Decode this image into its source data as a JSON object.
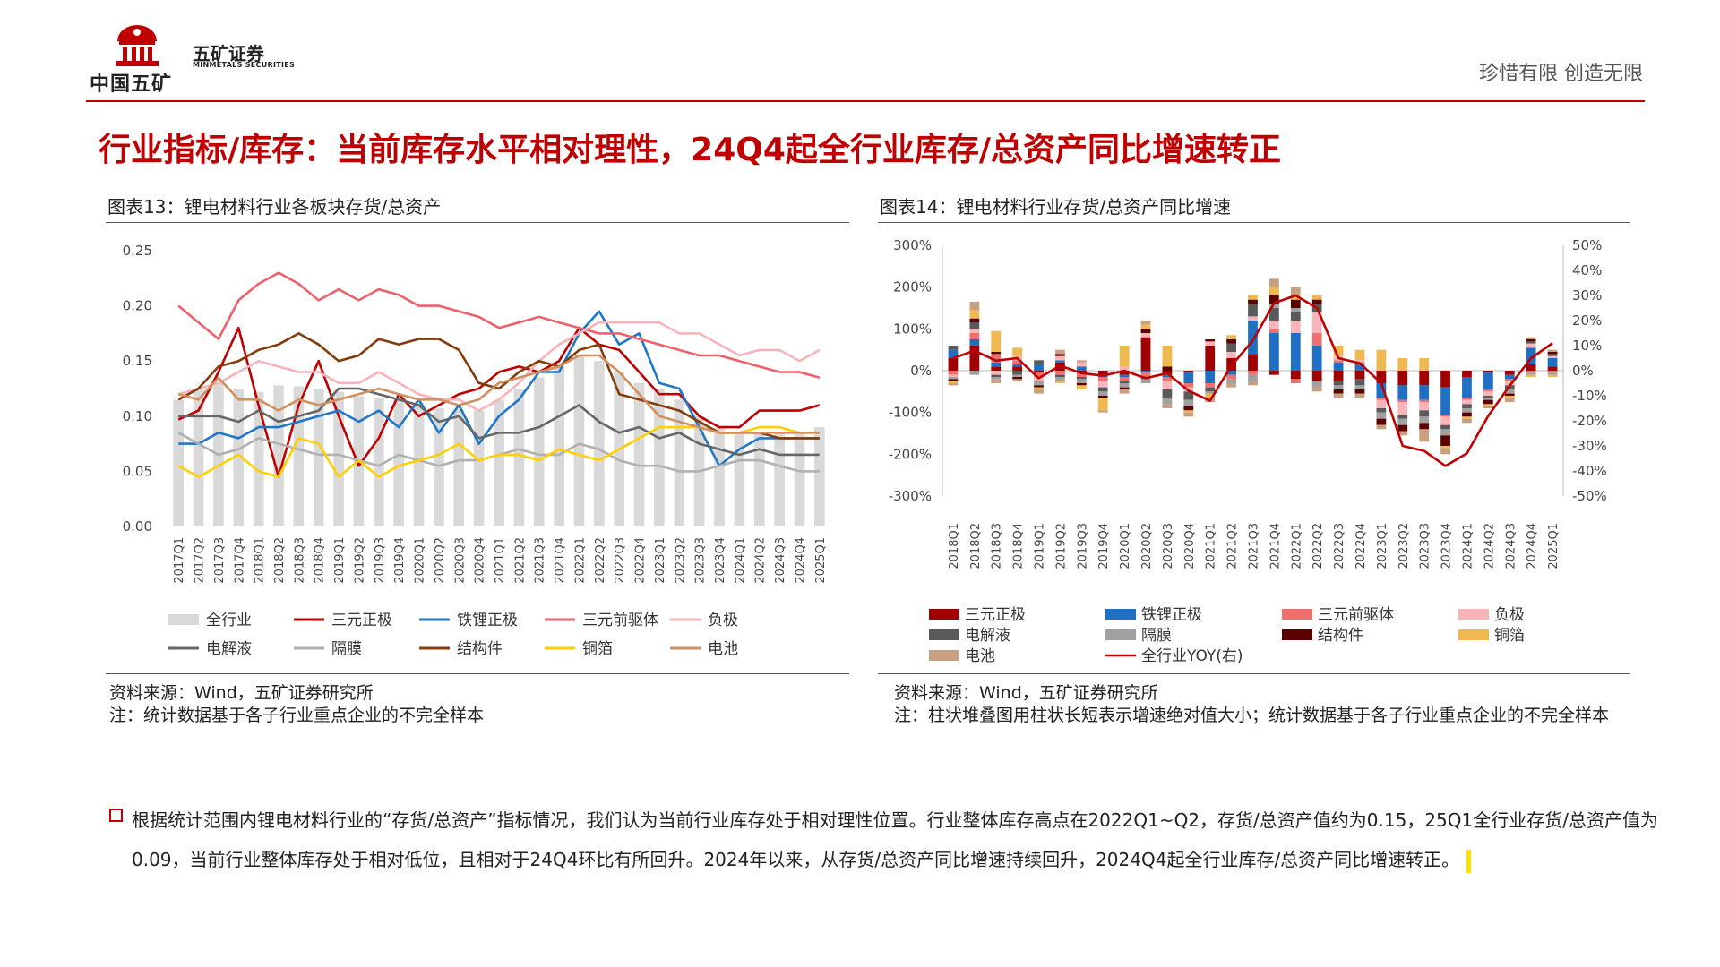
{
  "header": {
    "brand_cn": "中国五矿",
    "company_name": "五矿证券",
    "company_en": "MINMETALS SECURITIES",
    "slogan": "珍惜有限  创造无限"
  },
  "page_title": "行业指标/库存：当前库存水平相对理性，24Q4起全行业库存/总资产同比增速转正",
  "chart13": {
    "caption": "图表13：锂电材料行业各板块存货/总资产",
    "source": "资料来源：Wind，五矿证券研究所",
    "note": "注：统计数据基于各子行业重点企业的不完全样本"
  },
  "chart14": {
    "caption": "图表14：锂电材料行业存货/总资产同比增速",
    "source": "资料来源：Wind，五矿证券研究所",
    "note": "注：柱状堆叠图用柱状长短表示增速绝对值大小；统计数据基于各子行业重点企业的不完全样本"
  },
  "conclusion": "根据统计范围内锂电材料行业的“存货/总资产”指标情况，我们认为当前行业库存处于相对理性位置。行业整体库存高点在2022Q1~Q2，存货/总资产值约为0.15，25Q1全行业存货/总资产值为0.09，当前行业整体库存处于相对低位，且相对于24Q4环比有所回升。2024年以来，从存货/总资产同比增速持续回升，2024Q4起全行业库存/总资产同比增速转正。",
  "chart_data": [
    {
      "type": "bar",
      "ylim": [
        0,
        0.25
      ],
      "yticks": [
        "0.25",
        "0.20",
        "0.15",
        "0.10",
        "0.05",
        "0.00"
      ],
      "legend_position": "bottom",
      "categories": [
        "2017Q1",
        "2017Q2",
        "2017Q3",
        "2017Q4",
        "2018Q1",
        "2018Q2",
        "2018Q3",
        "2018Q4",
        "2019Q1",
        "2019Q2",
        "2019Q3",
        "2019Q4",
        "2020Q1",
        "2020Q2",
        "2020Q3",
        "2020Q4",
        "2021Q1",
        "2021Q2",
        "2021Q3",
        "2021Q4",
        "2022Q1",
        "2022Q2",
        "2022Q3",
        "2022Q4",
        "2023Q1",
        "2023Q2",
        "2023Q3",
        "2023Q4",
        "2024Q1",
        "2024Q2",
        "2024Q3",
        "2024Q4",
        "2025Q1"
      ],
      "bar_series": {
        "name": "全行业",
        "color": "#d9d9d9",
        "values": [
          0.115,
          0.125,
          0.13,
          0.125,
          0.122,
          0.128,
          0.127,
          0.125,
          0.122,
          0.118,
          0.117,
          0.116,
          0.112,
          0.107,
          0.106,
          0.105,
          0.115,
          0.125,
          0.135,
          0.145,
          0.155,
          0.15,
          0.14,
          0.13,
          0.125,
          0.115,
          0.1,
          0.09,
          0.085,
          0.085,
          0.085,
          0.085,
          0.09
        ]
      },
      "series": [
        {
          "name": "三元正极",
          "color": "#c00000",
          "width": 2.6,
          "values": [
            0.097,
            0.105,
            0.14,
            0.18,
            0.11,
            0.045,
            0.11,
            0.15,
            0.1,
            0.055,
            0.08,
            0.12,
            0.1,
            0.11,
            0.12,
            0.125,
            0.14,
            0.145,
            0.14,
            0.15,
            0.18,
            0.165,
            0.16,
            0.14,
            0.12,
            0.12,
            0.1,
            0.09,
            0.09,
            0.105,
            0.105,
            0.105,
            0.11
          ]
        },
        {
          "name": "铁锂正极",
          "color": "#1f77c8",
          "width": 2.6,
          "values": [
            0.075,
            0.075,
            0.085,
            0.08,
            0.09,
            0.09,
            0.095,
            0.1,
            0.105,
            0.095,
            0.105,
            0.09,
            0.115,
            0.085,
            0.11,
            0.075,
            0.1,
            0.115,
            0.14,
            0.14,
            0.175,
            0.195,
            0.165,
            0.175,
            0.13,
            0.125,
            0.09,
            0.055,
            0.07,
            0.08,
            0.08,
            0.08,
            0.08
          ]
        },
        {
          "name": "三元前驱体",
          "color": "#f0606a",
          "width": 2.6,
          "values": [
            0.2,
            0.185,
            0.17,
            0.205,
            0.22,
            0.23,
            0.22,
            0.205,
            0.215,
            0.205,
            0.215,
            0.21,
            0.2,
            0.2,
            0.195,
            0.19,
            0.18,
            0.185,
            0.19,
            0.185,
            0.18,
            0.175,
            0.175,
            0.17,
            0.165,
            0.16,
            0.155,
            0.155,
            0.15,
            0.145,
            0.14,
            0.14,
            0.135
          ]
        },
        {
          "name": "负极",
          "color": "#f8b4b8",
          "width": 2.6,
          "values": [
            0.12,
            0.125,
            0.13,
            0.14,
            0.15,
            0.145,
            0.14,
            0.14,
            0.13,
            0.13,
            0.14,
            0.13,
            0.12,
            0.115,
            0.115,
            0.105,
            0.115,
            0.13,
            0.15,
            0.165,
            0.175,
            0.185,
            0.185,
            0.185,
            0.185,
            0.175,
            0.175,
            0.165,
            0.155,
            0.16,
            0.16,
            0.15,
            0.16
          ]
        },
        {
          "name": "电解液",
          "color": "#666666",
          "width": 2.6,
          "values": [
            0.1,
            0.1,
            0.1,
            0.095,
            0.105,
            0.095,
            0.1,
            0.105,
            0.125,
            0.125,
            0.12,
            0.115,
            0.11,
            0.095,
            0.1,
            0.08,
            0.085,
            0.085,
            0.09,
            0.1,
            0.11,
            0.095,
            0.085,
            0.09,
            0.08,
            0.085,
            0.075,
            0.07,
            0.065,
            0.07,
            0.065,
            0.065,
            0.065
          ]
        },
        {
          "name": "隔膜",
          "color": "#b0b0b0",
          "width": 2.6,
          "values": [
            0.085,
            0.075,
            0.065,
            0.07,
            0.08,
            0.075,
            0.07,
            0.065,
            0.065,
            0.06,
            0.055,
            0.065,
            0.06,
            0.055,
            0.06,
            0.06,
            0.065,
            0.07,
            0.065,
            0.065,
            0.075,
            0.07,
            0.06,
            0.055,
            0.055,
            0.05,
            0.05,
            0.055,
            0.06,
            0.06,
            0.055,
            0.05,
            0.05
          ]
        },
        {
          "name": "结构件",
          "color": "#843c0c",
          "width": 2.6,
          "values": [
            0.115,
            0.125,
            0.145,
            0.15,
            0.16,
            0.165,
            0.175,
            0.165,
            0.15,
            0.155,
            0.17,
            0.165,
            0.17,
            0.17,
            0.16,
            0.13,
            0.125,
            0.14,
            0.15,
            0.145,
            0.16,
            0.165,
            0.12,
            0.115,
            0.11,
            0.105,
            0.095,
            0.085,
            0.085,
            0.085,
            0.08,
            0.08,
            0.08
          ]
        },
        {
          "name": "铜箔",
          "color": "#ffd000",
          "width": 2.6,
          "values": [
            0.055,
            0.045,
            0.055,
            0.065,
            0.05,
            0.045,
            0.08,
            0.075,
            0.045,
            0.06,
            0.045,
            0.055,
            0.06,
            0.065,
            0.075,
            0.06,
            0.065,
            0.065,
            0.06,
            0.07,
            0.065,
            0.06,
            0.07,
            0.08,
            0.09,
            0.09,
            0.09,
            0.085,
            0.085,
            0.09,
            0.09,
            0.085,
            0.085
          ]
        },
        {
          "name": "电池",
          "color": "#d09060",
          "width": 2.6,
          "values": [
            0.12,
            0.115,
            0.135,
            0.115,
            0.115,
            0.105,
            0.115,
            0.11,
            0.115,
            0.12,
            0.125,
            0.12,
            0.115,
            0.115,
            0.11,
            0.115,
            0.13,
            0.135,
            0.14,
            0.145,
            0.155,
            0.155,
            0.14,
            0.12,
            0.1,
            0.095,
            0.09,
            0.085,
            0.085,
            0.085,
            0.085,
            0.085,
            0.085
          ]
        }
      ]
    },
    {
      "type": "bar",
      "stacked": true,
      "ylim_left": [
        -300,
        300
      ],
      "yticks_left": [
        "300%",
        "200%",
        "100%",
        "0%",
        "-100%",
        "-200%",
        "-300%"
      ],
      "ylim_right": [
        -50,
        50
      ],
      "yticks_right": [
        "50%",
        "40%",
        "30%",
        "20%",
        "10%",
        "0%",
        "-10%",
        "-20%",
        "-30%",
        "-40%",
        "-50%"
      ],
      "legend_position": "bottom",
      "categories": [
        "2018Q1",
        "2018Q2",
        "2018Q3",
        "2018Q4",
        "2019Q1",
        "2019Q2",
        "2019Q3",
        "2019Q4",
        "2020Q1",
        "2020Q2",
        "2020Q3",
        "2020Q4",
        "2021Q1",
        "2021Q2",
        "2021Q3",
        "2021Q4",
        "2022Q1",
        "2022Q2",
        "2022Q3",
        "2022Q4",
        "2023Q1",
        "2023Q2",
        "2023Q3",
        "2023Q4",
        "2024Q1",
        "2024Q2",
        "2024Q3",
        "2024Q4",
        "2025Q1"
      ],
      "series": [
        {
          "name": "三元正极",
          "color": "#a00000",
          "values": [
            30,
            60,
            10,
            10,
            -5,
            20,
            -5,
            -10,
            -10,
            80,
            -10,
            -5,
            60,
            30,
            40,
            -10,
            -20,
            -25,
            -25,
            -20,
            -30,
            -35,
            -35,
            -40,
            -15,
            -5,
            -10,
            15,
            10
          ]
        },
        {
          "name": "铁锂正极",
          "color": "#1f6fc5",
          "values": [
            20,
            15,
            10,
            5,
            15,
            5,
            10,
            -5,
            -5,
            -5,
            -5,
            -25,
            -30,
            -10,
            80,
            90,
            90,
            60,
            20,
            15,
            -35,
            -35,
            -35,
            -65,
            -50,
            -40,
            -10,
            40,
            20
          ]
        },
        {
          "name": "三元前驱体",
          "color": "#f07070",
          "values": [
            -10,
            15,
            20,
            10,
            -10,
            -10,
            -10,
            -10,
            -10,
            -10,
            -10,
            -10,
            -10,
            -10,
            -10,
            10,
            -10,
            30,
            5,
            5,
            -5,
            -5,
            -5,
            -5,
            -5,
            -5,
            -5,
            -5,
            -5
          ]
        },
        {
          "name": "负极",
          "color": "#f8b4b8",
          "values": [
            -5,
            10,
            -10,
            10,
            -10,
            10,
            10,
            -15,
            10,
            10,
            -20,
            -10,
            10,
            15,
            10,
            20,
            30,
            50,
            10,
            5,
            -20,
            -30,
            -20,
            -20,
            -10,
            -10,
            -10,
            10,
            5
          ]
        },
        {
          "name": "电解液",
          "color": "#5a5a5a",
          "values": [
            10,
            15,
            -5,
            -10,
            10,
            -5,
            -5,
            -10,
            -5,
            -5,
            -20,
            -20,
            -10,
            20,
            30,
            30,
            20,
            20,
            -10,
            -15,
            -10,
            -10,
            -15,
            -10,
            -10,
            -5,
            -10,
            5,
            5
          ]
        },
        {
          "name": "隔膜",
          "color": "#a0a0a0",
          "values": [
            -5,
            -10,
            -5,
            -5,
            -10,
            -10,
            -10,
            -10,
            -10,
            -10,
            -15,
            -15,
            -5,
            -10,
            -15,
            10,
            10,
            -15,
            -10,
            -10,
            -15,
            -15,
            -15,
            -15,
            -10,
            -5,
            -10,
            -5,
            -5
          ]
        },
        {
          "name": "结构件",
          "color": "#5c0000",
          "values": [
            -5,
            10,
            5,
            -5,
            -5,
            5,
            -5,
            -5,
            -5,
            10,
            10,
            -10,
            5,
            10,
            10,
            20,
            20,
            10,
            -10,
            -10,
            -15,
            -15,
            -15,
            -25,
            -10,
            -10,
            -5,
            5,
            5
          ]
        },
        {
          "name": "铜箔",
          "color": "#f0b850",
          "values": [
            -5,
            20,
            50,
            20,
            -5,
            -5,
            -10,
            -30,
            50,
            10,
            50,
            -5,
            -10,
            10,
            10,
            20,
            10,
            10,
            25,
            25,
            50,
            30,
            30,
            -5,
            -5,
            -5,
            -5,
            -5,
            -5
          ]
        },
        {
          "name": "电池",
          "color": "#c8a080",
          "values": [
            -5,
            20,
            -10,
            -5,
            -10,
            10,
            5,
            -5,
            -10,
            10,
            -10,
            -10,
            -10,
            -10,
            -10,
            20,
            20,
            -10,
            -10,
            -10,
            -10,
            -10,
            -30,
            -15,
            -10,
            -5,
            -10,
            5,
            5
          ]
        }
      ],
      "line_series": {
        "name": "全行业YOY(右)",
        "color": "#c00000",
        "axis": "right",
        "values": [
          5,
          8,
          4,
          5,
          -3,
          2,
          -1,
          -2,
          0,
          -3,
          -1,
          -8,
          -12,
          2,
          12,
          27,
          30,
          25,
          5,
          3,
          -5,
          -30,
          -32,
          -38,
          -33,
          -18,
          -6,
          5,
          11
        ]
      }
    }
  ]
}
